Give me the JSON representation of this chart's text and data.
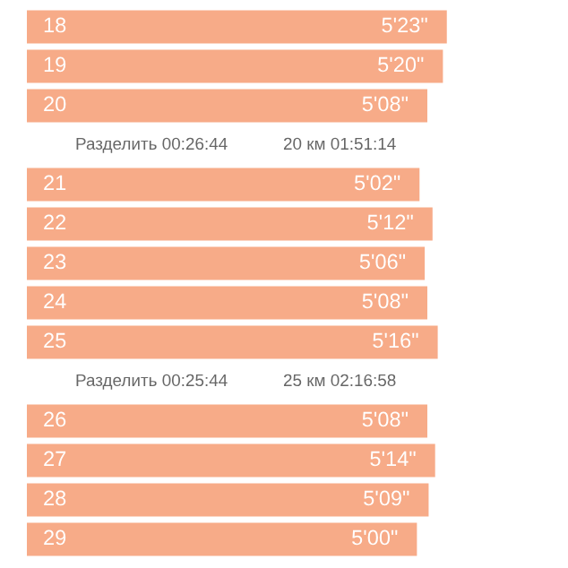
{
  "chart_data": [
    {
      "type": "bar",
      "orientation": "horizontal",
      "tick_labels": false,
      "color": "#f7ab88",
      "categories": [
        "18",
        "19",
        "20"
      ],
      "values": [
        5.3833,
        5.3333,
        5.1333
      ],
      "value_labels": [
        "5'23\"",
        "5'20\"",
        "5'08\""
      ],
      "annotations": [
        "Разделить 00:26:44",
        "20 км 01:51:14"
      ]
    },
    {
      "type": "bar",
      "orientation": "horizontal",
      "tick_labels": false,
      "color": "#f7ab88",
      "categories": [
        "21",
        "22",
        "23",
        "24",
        "25"
      ],
      "values": [
        5.0333,
        5.2,
        5.1,
        5.1333,
        5.2667
      ],
      "value_labels": [
        "5'02\"",
        "5'12\"",
        "5'06\"",
        "5'08\"",
        "5'16\""
      ],
      "annotations": [
        "Разделить 00:25:44",
        "25 км 02:16:58"
      ]
    },
    {
      "type": "bar",
      "orientation": "horizontal",
      "tick_labels": false,
      "color": "#f7ab88",
      "categories": [
        "26",
        "27",
        "28",
        "29"
      ],
      "values": [
        5.1333,
        5.2333,
        5.15,
        5.0
      ],
      "value_labels": [
        "5'08\"",
        "5'14\"",
        "5'09\"",
        "5'00\""
      ]
    }
  ]
}
